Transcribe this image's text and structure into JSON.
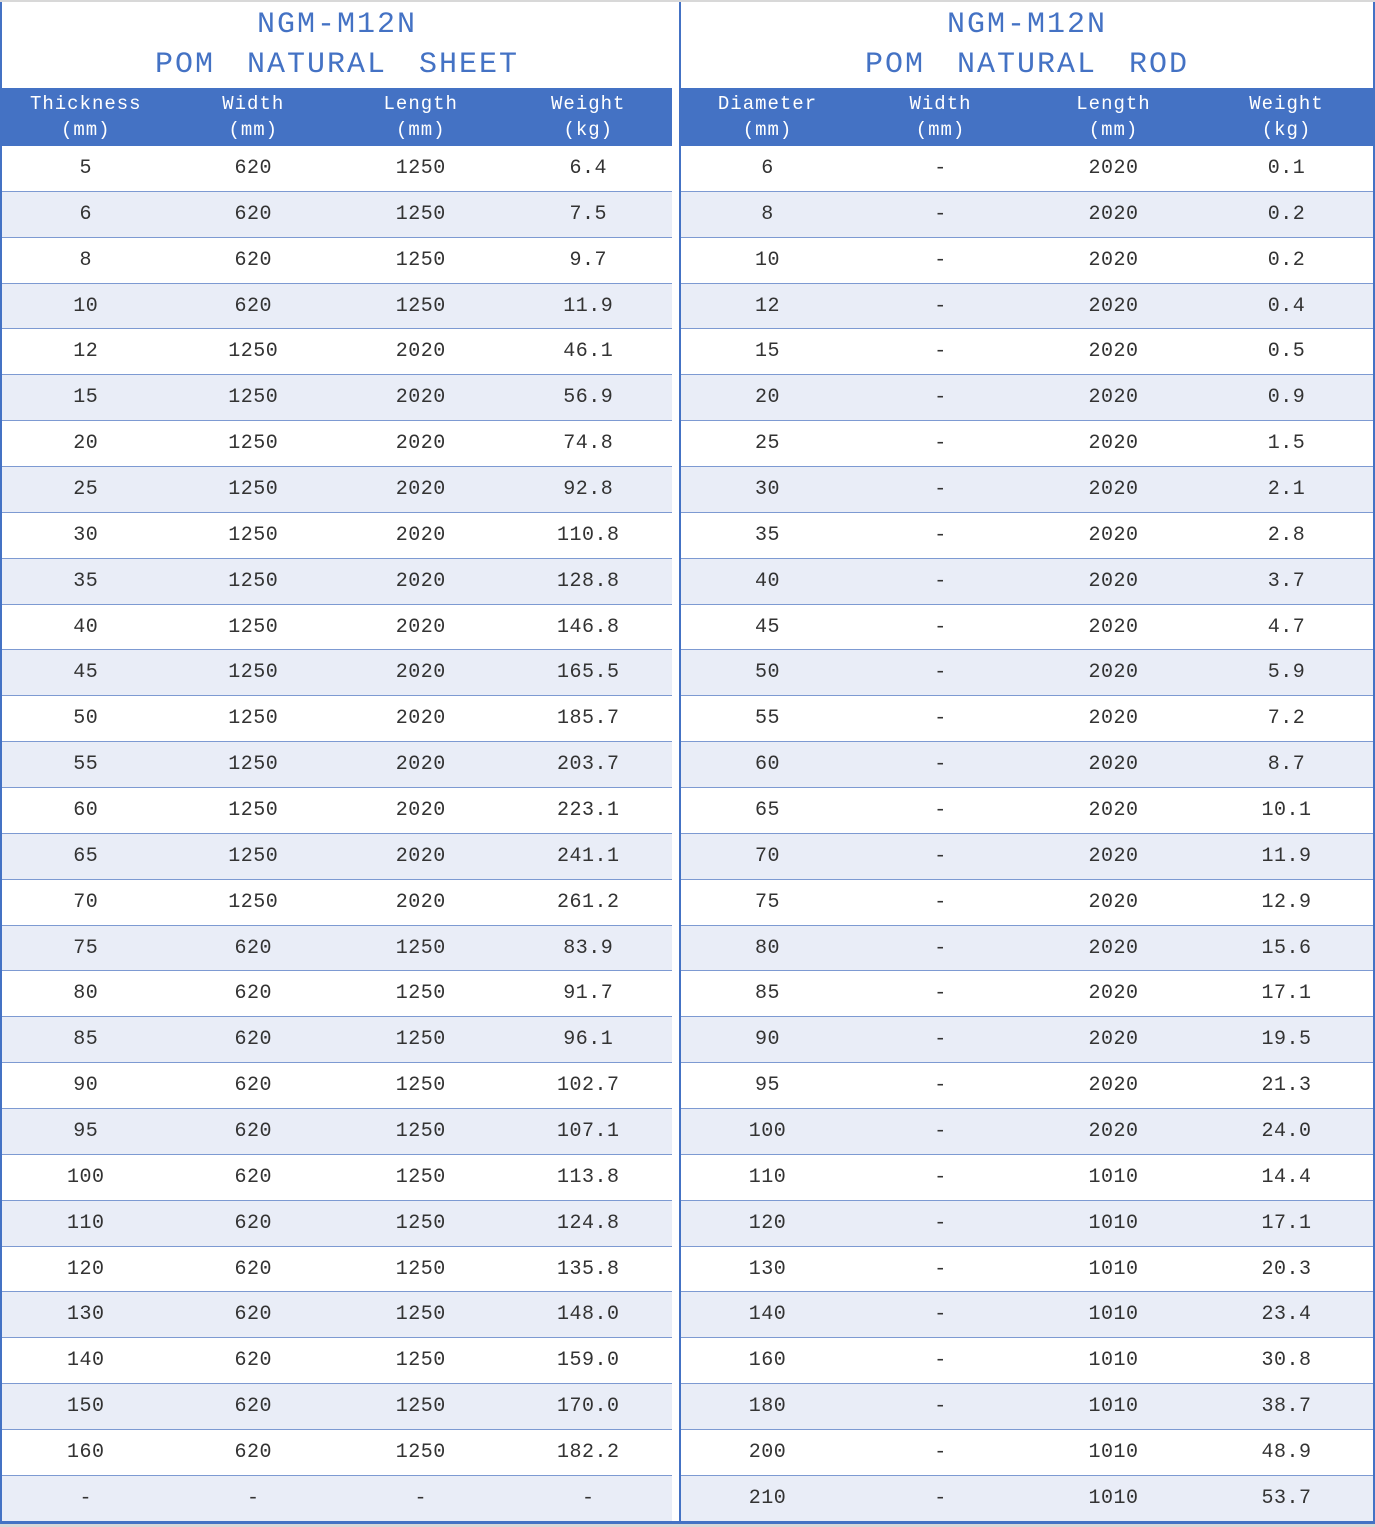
{
  "colors": {
    "accent_blue": "#4472C4",
    "alt_row_blue": "#E9EDF7",
    "header_text": "#FFFFFF",
    "body_text": "#333333",
    "row_border": "#7D9AD2"
  },
  "tables": [
    {
      "title_line1": "NGM-M12N",
      "title_line2": "POM NATURAL SHEET",
      "columns": [
        {
          "label": "Thickness",
          "unit": "(mm)"
        },
        {
          "label": "Width",
          "unit": "(mm)"
        },
        {
          "label": "Length",
          "unit": "(mm)"
        },
        {
          "label": "Weight",
          "unit": "(kg)"
        }
      ],
      "rows": [
        [
          "5",
          "620",
          "1250",
          "6.4"
        ],
        [
          "6",
          "620",
          "1250",
          "7.5"
        ],
        [
          "8",
          "620",
          "1250",
          "9.7"
        ],
        [
          "10",
          "620",
          "1250",
          "11.9"
        ],
        [
          "12",
          "1250",
          "2020",
          "46.1"
        ],
        [
          "15",
          "1250",
          "2020",
          "56.9"
        ],
        [
          "20",
          "1250",
          "2020",
          "74.8"
        ],
        [
          "25",
          "1250",
          "2020",
          "92.8"
        ],
        [
          "30",
          "1250",
          "2020",
          "110.8"
        ],
        [
          "35",
          "1250",
          "2020",
          "128.8"
        ],
        [
          "40",
          "1250",
          "2020",
          "146.8"
        ],
        [
          "45",
          "1250",
          "2020",
          "165.5"
        ],
        [
          "50",
          "1250",
          "2020",
          "185.7"
        ],
        [
          "55",
          "1250",
          "2020",
          "203.7"
        ],
        [
          "60",
          "1250",
          "2020",
          "223.1"
        ],
        [
          "65",
          "1250",
          "2020",
          "241.1"
        ],
        [
          "70",
          "1250",
          "2020",
          "261.2"
        ],
        [
          "75",
          "620",
          "1250",
          "83.9"
        ],
        [
          "80",
          "620",
          "1250",
          "91.7"
        ],
        [
          "85",
          "620",
          "1250",
          "96.1"
        ],
        [
          "90",
          "620",
          "1250",
          "102.7"
        ],
        [
          "95",
          "620",
          "1250",
          "107.1"
        ],
        [
          "100",
          "620",
          "1250",
          "113.8"
        ],
        [
          "110",
          "620",
          "1250",
          "124.8"
        ],
        [
          "120",
          "620",
          "1250",
          "135.8"
        ],
        [
          "130",
          "620",
          "1250",
          "148.0"
        ],
        [
          "140",
          "620",
          "1250",
          "159.0"
        ],
        [
          "150",
          "620",
          "1250",
          "170.0"
        ],
        [
          "160",
          "620",
          "1250",
          "182.2"
        ],
        [
          "-",
          "-",
          "-",
          "-"
        ]
      ]
    },
    {
      "title_line1": "NGM-M12N",
      "title_line2": "POM NATURAL ROD",
      "columns": [
        {
          "label": "Diameter",
          "unit": "(mm)"
        },
        {
          "label": "Width",
          "unit": "(mm)"
        },
        {
          "label": "Length",
          "unit": "(mm)"
        },
        {
          "label": "Weight",
          "unit": "(kg)"
        }
      ],
      "rows": [
        [
          "6",
          "-",
          "2020",
          "0.1"
        ],
        [
          "8",
          "-",
          "2020",
          "0.2"
        ],
        [
          "10",
          "-",
          "2020",
          "0.2"
        ],
        [
          "12",
          "-",
          "2020",
          "0.4"
        ],
        [
          "15",
          "-",
          "2020",
          "0.5"
        ],
        [
          "20",
          "-",
          "2020",
          "0.9"
        ],
        [
          "25",
          "-",
          "2020",
          "1.5"
        ],
        [
          "30",
          "-",
          "2020",
          "2.1"
        ],
        [
          "35",
          "-",
          "2020",
          "2.8"
        ],
        [
          "40",
          "-",
          "2020",
          "3.7"
        ],
        [
          "45",
          "-",
          "2020",
          "4.7"
        ],
        [
          "50",
          "-",
          "2020",
          "5.9"
        ],
        [
          "55",
          "-",
          "2020",
          "7.2"
        ],
        [
          "60",
          "-",
          "2020",
          "8.7"
        ],
        [
          "65",
          "-",
          "2020",
          "10.1"
        ],
        [
          "70",
          "-",
          "2020",
          "11.9"
        ],
        [
          "75",
          "-",
          "2020",
          "12.9"
        ],
        [
          "80",
          "-",
          "2020",
          "15.6"
        ],
        [
          "85",
          "-",
          "2020",
          "17.1"
        ],
        [
          "90",
          "-",
          "2020",
          "19.5"
        ],
        [
          "95",
          "-",
          "2020",
          "21.3"
        ],
        [
          "100",
          "-",
          "2020",
          "24.0"
        ],
        [
          "110",
          "-",
          "1010",
          "14.4"
        ],
        [
          "120",
          "-",
          "1010",
          "17.1"
        ],
        [
          "130",
          "-",
          "1010",
          "20.3"
        ],
        [
          "140",
          "-",
          "1010",
          "23.4"
        ],
        [
          "160",
          "-",
          "1010",
          "30.8"
        ],
        [
          "180",
          "-",
          "1010",
          "38.7"
        ],
        [
          "200",
          "-",
          "1010",
          "48.9"
        ],
        [
          "210",
          "-",
          "1010",
          "53.7"
        ]
      ]
    }
  ]
}
